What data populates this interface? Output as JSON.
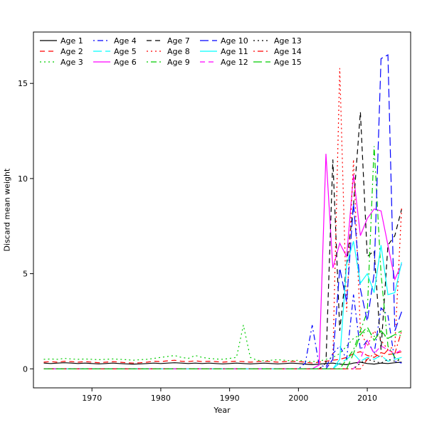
{
  "axes": {
    "xlabel": "Year",
    "ylabel": "Discard mean weight",
    "xticks": [
      1970,
      1980,
      1990,
      2000,
      2010
    ],
    "yticks": [
      0,
      5,
      10,
      15
    ]
  },
  "legend": {
    "position": "top-left",
    "ncol": 5
  },
  "chart_data": {
    "type": "line",
    "title": "",
    "xlabel": "Year",
    "ylabel": "Discard mean weight",
    "xlim": [
      1961.5,
      2016.3
    ],
    "ylim": [
      -1.0,
      17.7
    ],
    "grid": false,
    "legend_position": "top-left",
    "x": [
      1963,
      1964,
      1965,
      1966,
      1967,
      1968,
      1969,
      1970,
      1971,
      1972,
      1973,
      1974,
      1975,
      1976,
      1977,
      1978,
      1979,
      1980,
      1981,
      1982,
      1983,
      1984,
      1985,
      1986,
      1987,
      1988,
      1989,
      1990,
      1991,
      1992,
      1993,
      1994,
      1995,
      1996,
      1997,
      1998,
      1999,
      2000,
      2001,
      2002,
      2003,
      2004,
      2005,
      2006,
      2007,
      2008,
      2009,
      2010,
      2011,
      2012,
      2013,
      2014,
      2015
    ],
    "series": [
      {
        "name": "Age 1",
        "color": "#000000",
        "dash": "solid",
        "values": [
          0.3,
          0.28,
          0.3,
          0.32,
          0.3,
          0.28,
          0.3,
          0.28,
          0.26,
          0.28,
          0.3,
          0.28,
          0.26,
          0.25,
          0.26,
          0.28,
          0.3,
          0.28,
          0.3,
          0.32,
          0.3,
          0.28,
          0.3,
          0.28,
          0.3,
          0.28,
          0.26,
          0.28,
          0.3,
          0.28,
          0.26,
          0.28,
          0.3,
          0.28,
          0.26,
          0.28,
          0.3,
          0.28,
          0.25,
          0.22,
          0.25,
          0.28,
          0.3,
          0.25,
          0.22,
          0.3,
          0.35,
          0.28,
          0.25,
          0.3,
          0.28,
          0.32,
          0.35
        ]
      },
      {
        "name": "Age 2",
        "color": "#FF0000",
        "dash": "dashed",
        "values": [
          0.35,
          0.38,
          0.35,
          0.4,
          0.38,
          0.35,
          0.38,
          0.35,
          0.32,
          0.35,
          0.38,
          0.35,
          0.32,
          0.3,
          0.32,
          0.35,
          0.4,
          0.38,
          0.42,
          0.45,
          0.4,
          0.38,
          0.42,
          0.38,
          0.4,
          0.38,
          0.35,
          0.38,
          0.4,
          0.38,
          0.35,
          0.38,
          0.4,
          0.38,
          0.35,
          0.38,
          0.4,
          0.38,
          0.35,
          0.3,
          0.35,
          0.4,
          0.45,
          0.5,
          0.6,
          0.8,
          0.9,
          0.7,
          0.6,
          0.85,
          0.75,
          0.8,
          0.9
        ]
      },
      {
        "name": "Age 3",
        "color": "#00CC00",
        "dash": "dotted",
        "values": [
          0.5,
          0.52,
          0.5,
          0.55,
          0.52,
          0.5,
          0.52,
          0.5,
          0.48,
          0.5,
          0.52,
          0.5,
          0.48,
          0.45,
          0.48,
          0.5,
          0.55,
          0.6,
          0.65,
          0.7,
          0.6,
          0.55,
          0.7,
          0.6,
          0.55,
          0.52,
          0.5,
          0.55,
          0.6,
          2.3,
          0.6,
          0.45,
          0.42,
          0.45,
          0.48,
          0.45,
          0.42,
          0.45,
          0.4,
          0.38,
          0.4,
          0.5,
          0.6,
          0.8,
          1.2,
          1.6,
          1.8,
          2.0,
          1.7,
          1.9,
          1.6,
          1.8,
          1.75
        ]
      },
      {
        "name": "Age 4",
        "color": "#0000FF",
        "dash": "dotdash",
        "values": [
          0,
          0,
          0,
          0,
          0,
          0,
          0,
          0,
          0,
          0,
          0,
          0,
          0,
          0,
          0,
          0,
          0,
          0,
          0,
          0,
          0,
          0,
          0,
          0,
          0,
          0,
          0,
          0,
          0,
          0,
          0,
          0,
          0,
          0,
          0,
          0,
          0,
          0,
          0.3,
          2.3,
          0.2,
          0.1,
          0.8,
          1.2,
          0.5,
          3.9,
          1.0,
          1.5,
          0.8,
          3.2,
          2.8,
          0.4,
          0.3
        ]
      },
      {
        "name": "Age 5",
        "color": "#00FFFF",
        "dash": "longdash",
        "values": [
          0,
          0,
          0,
          0,
          0,
          0,
          0,
          0,
          0,
          0,
          0,
          0,
          0,
          0,
          0,
          0,
          0,
          0,
          0,
          0,
          0,
          0,
          0,
          0,
          0,
          0,
          0,
          0,
          0,
          0,
          0,
          0,
          0,
          0,
          0,
          0,
          0,
          0,
          0,
          0,
          0,
          0,
          0,
          0.3,
          0.5,
          0.8,
          0.4,
          0.6,
          0.5,
          0.7,
          0.4,
          0.5,
          0.6
        ]
      },
      {
        "name": "Age 6",
        "color": "#FF00FF",
        "dash": "solid",
        "values": [
          0,
          0,
          0,
          0,
          0,
          0,
          0,
          0,
          0,
          0,
          0,
          0,
          0,
          0,
          0,
          0,
          0,
          0,
          0,
          0,
          0,
          0,
          0,
          0,
          0,
          0,
          0,
          0,
          0,
          0,
          0,
          0,
          0,
          0,
          0,
          0,
          0,
          0,
          0,
          0,
          0.2,
          11.3,
          5.3,
          6.6,
          5.9,
          10.2,
          7.0,
          7.9,
          8.4,
          8.3,
          6.5,
          4.7,
          5.5
        ]
      },
      {
        "name": "Age 7",
        "color": "#000000",
        "dash": "dashed",
        "values": [
          0,
          0,
          0,
          0,
          0,
          0,
          0,
          0,
          0,
          0,
          0,
          0,
          0,
          0,
          0,
          0,
          0,
          0,
          0,
          0,
          0,
          0,
          0,
          0,
          0,
          0,
          0,
          0,
          0,
          0,
          0,
          0,
          0,
          0,
          0,
          0,
          0,
          0,
          0,
          0,
          0,
          0.3,
          11.0,
          2.0,
          5.5,
          8.6,
          13.5,
          5.9,
          6.2,
          1.0,
          6.5,
          7.0,
          8.4
        ]
      },
      {
        "name": "Age 8",
        "color": "#FF0000",
        "dash": "dotted",
        "values": [
          0,
          0,
          0,
          0,
          0,
          0,
          0,
          0,
          0,
          0,
          0,
          0,
          0,
          0,
          0,
          0,
          0,
          0,
          0,
          0,
          0,
          0,
          0,
          0,
          0,
          0,
          0,
          0,
          0,
          0,
          0,
          0,
          0,
          0,
          0,
          0,
          0,
          0,
          0,
          0,
          0,
          0,
          0.5,
          15.8,
          3.0,
          11.0,
          2.0,
          1.2,
          2.0,
          1.5,
          1.0,
          1.2,
          8.5
        ]
      },
      {
        "name": "Age 9",
        "color": "#00CC00",
        "dash": "dotdash",
        "values": [
          0,
          0,
          0,
          0,
          0,
          0,
          0,
          0,
          0,
          0,
          0,
          0,
          0,
          0,
          0,
          0,
          0,
          0,
          0,
          0,
          0,
          0,
          0,
          0,
          0,
          0,
          0,
          0,
          0,
          0,
          0,
          0,
          0,
          0,
          0,
          0,
          0,
          0,
          0,
          0,
          0,
          0,
          0,
          0,
          0.5,
          1.0,
          2.0,
          3.0,
          11.7,
          5.0,
          1.2,
          0.6,
          0.4
        ]
      },
      {
        "name": "Age 10",
        "color": "#0000FF",
        "dash": "longdash",
        "values": [
          0,
          0,
          0,
          0,
          0,
          0,
          0,
          0,
          0,
          0,
          0,
          0,
          0,
          0,
          0,
          0,
          0,
          0,
          0,
          0,
          0,
          0,
          0,
          0,
          0,
          0,
          0,
          0,
          0,
          0,
          0,
          0,
          0,
          0,
          0,
          0,
          0,
          0,
          0,
          0,
          0,
          0,
          0.5,
          5.3,
          3.5,
          8.7,
          4.2,
          2.5,
          5.0,
          16.3,
          16.5,
          2.0,
          3.0
        ]
      },
      {
        "name": "Age 11",
        "color": "#00FFFF",
        "dash": "solid",
        "values": [
          0,
          0,
          0,
          0,
          0,
          0,
          0,
          0,
          0,
          0,
          0,
          0,
          0,
          0,
          0,
          0,
          0,
          0,
          0,
          0,
          0,
          0,
          0,
          0,
          0,
          0,
          0,
          0,
          0,
          0,
          0,
          0,
          0,
          0,
          0,
          0,
          0,
          0,
          0,
          0,
          0,
          0,
          0,
          0.5,
          5.5,
          6.7,
          4.5,
          5.0,
          4.0,
          6.5,
          3.9,
          4.0,
          5.6
        ]
      },
      {
        "name": "Age 12",
        "color": "#FF00FF",
        "dash": "dashed",
        "values": [
          0,
          0,
          0,
          0,
          0,
          0,
          0,
          0,
          0,
          0,
          0,
          0,
          0,
          0,
          0,
          0,
          0,
          0,
          0,
          0,
          0,
          0,
          0,
          0,
          0,
          0,
          0,
          0,
          0,
          0,
          0,
          0,
          0,
          0,
          0,
          0,
          0,
          0,
          0,
          0,
          0,
          0,
          0,
          0,
          0,
          0,
          0.5,
          1.5,
          0.8,
          1.2,
          1.0,
          0.8,
          1.0
        ]
      },
      {
        "name": "Age 13",
        "color": "#000000",
        "dash": "dotted",
        "values": [
          0,
          0,
          0,
          0,
          0,
          0,
          0,
          0,
          0,
          0,
          0,
          0,
          0,
          0,
          0,
          0,
          0,
          0,
          0,
          0,
          0,
          0,
          0,
          0,
          0,
          0,
          0,
          0,
          0,
          0,
          0,
          0,
          0,
          0,
          0,
          0,
          0,
          0,
          0,
          0,
          0,
          0,
          0,
          0,
          0,
          0,
          0.3,
          0.5,
          0.4,
          0.3,
          0.5,
          0.4,
          0.5
        ]
      },
      {
        "name": "Age 14",
        "color": "#FF0000",
        "dash": "dotdash",
        "values": [
          0,
          0,
          0,
          0,
          0,
          0,
          0,
          0,
          0,
          0,
          0,
          0,
          0,
          0,
          0,
          0,
          0,
          0,
          0,
          0,
          0,
          0,
          0,
          0,
          0,
          0,
          0,
          0,
          0,
          0,
          0,
          0,
          0,
          0,
          0,
          0,
          0,
          0,
          0,
          0,
          0,
          0,
          0,
          0,
          0,
          0,
          0,
          0.5,
          0.8,
          0.6,
          1.0,
          0.8,
          2.0
        ]
      },
      {
        "name": "Age 15",
        "color": "#00CC00",
        "dash": "longdash",
        "values": [
          0,
          0,
          0,
          0,
          0,
          0,
          0,
          0,
          0,
          0,
          0,
          0,
          0,
          0,
          0,
          0,
          0,
          0,
          0,
          0,
          0,
          0,
          0,
          0,
          0,
          0,
          0,
          0,
          0,
          0,
          0,
          0,
          0,
          0,
          0,
          0,
          0,
          0,
          0,
          0,
          0,
          0,
          0,
          0,
          0,
          0.8,
          1.8,
          2.2,
          1.5,
          2.0,
          1.6,
          1.8,
          2.0
        ]
      }
    ]
  }
}
